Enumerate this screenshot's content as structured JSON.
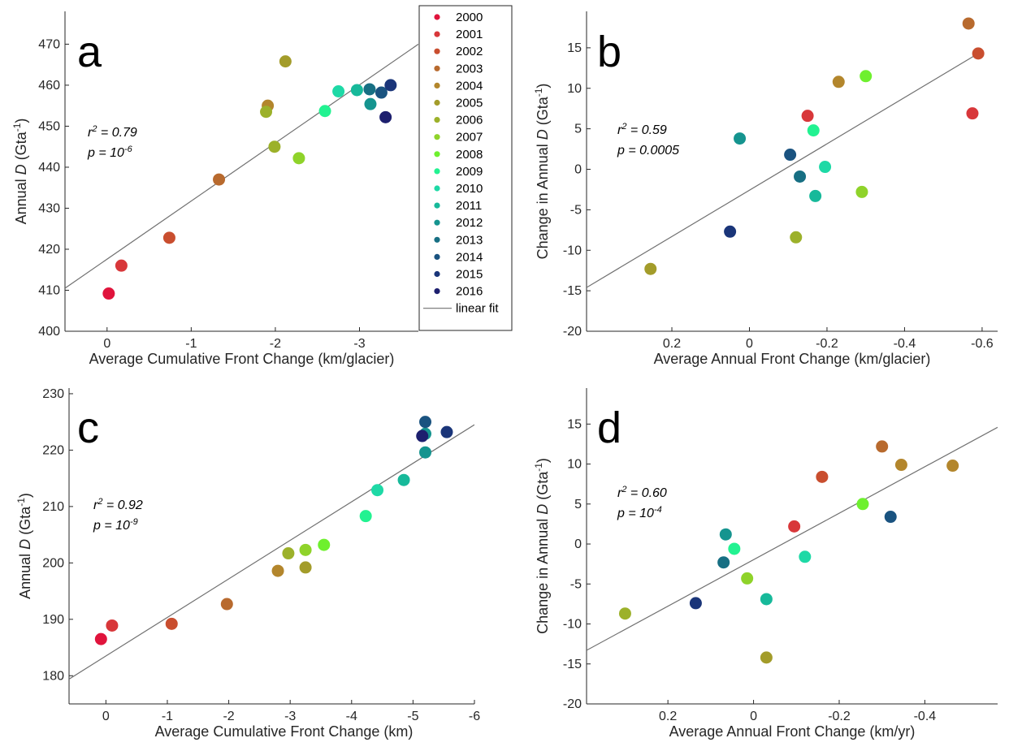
{
  "colors": {
    "2000": "#e0143c",
    "2001": "#d8373a",
    "2002": "#c94e2f",
    "2003": "#b86a2e",
    "2004": "#b3862c",
    "2005": "#a39c2a",
    "2006": "#9cb12a",
    "2007": "#8fd32a",
    "2008": "#6ef02e",
    "2009": "#22f291",
    "2010": "#1ed9a6",
    "2011": "#17b99a",
    "2012": "#15948f",
    "2013": "#176f83",
    "2014": "#1a5380",
    "2015": "#1a3579",
    "2016": "#1d1f6e",
    "fit_line": "#707070",
    "axis": "#262626"
  },
  "legend": {
    "entries": [
      "2000",
      "2001",
      "2002",
      "2003",
      "2004",
      "2005",
      "2006",
      "2007",
      "2008",
      "2009",
      "2010",
      "2011",
      "2012",
      "2013",
      "2014",
      "2015",
      "2016"
    ],
    "fit_label": "linear fit"
  },
  "chart_data": [
    {
      "panel": "a",
      "type": "scatter",
      "xlabel": "Average Cumulative Front Change (km/glacier)",
      "ylabel_parts": [
        "Annual ",
        "D",
        " (Gta",
        "-1",
        ")"
      ],
      "xlim": [
        0.5,
        -3.7
      ],
      "ylim": [
        400,
        478
      ],
      "xticks": [
        0,
        -1,
        -2,
        -3
      ],
      "xtick_labels": [
        "0",
        "-1",
        "-2",
        "-3"
      ],
      "yticks": [
        400,
        410,
        420,
        430,
        440,
        450,
        460,
        470
      ],
      "ytick_labels": [
        "400",
        "410",
        "420",
        "430",
        "440",
        "450",
        "460",
        "470"
      ],
      "stats": {
        "r2_lhs": "r",
        "r2_sup": "2",
        "r2_val": " = 0.79",
        "p_lhs": "p  = 10",
        "p_sup": "-6"
      },
      "fit": {
        "x": [
          0.5,
          -3.7
        ],
        "y": [
          410.5,
          470.0
        ]
      },
      "points": [
        {
          "year": "2000",
          "x": -0.02,
          "y": 409.2
        },
        {
          "year": "2001",
          "x": -0.17,
          "y": 416.0
        },
        {
          "year": "2002",
          "x": -0.74,
          "y": 422.8
        },
        {
          "year": "2003",
          "x": -1.33,
          "y": 437.0
        },
        {
          "year": "2004",
          "x": -1.91,
          "y": 455.0
        },
        {
          "year": "2005",
          "x": -2.12,
          "y": 465.8
        },
        {
          "year": "2006",
          "x": -1.89,
          "y": 453.5
        },
        {
          "year": "2006",
          "x": -1.99,
          "y": 445.0
        },
        {
          "year": "2007",
          "x": -2.28,
          "y": 442.2
        },
        {
          "year": "2009",
          "x": -2.59,
          "y": 453.7
        },
        {
          "year": "2010",
          "x": -2.75,
          "y": 458.5
        },
        {
          "year": "2011",
          "x": -2.97,
          "y": 458.8
        },
        {
          "year": "2012",
          "x": -3.13,
          "y": 455.4
        },
        {
          "year": "2013",
          "x": -3.12,
          "y": 459.0
        },
        {
          "year": "2014",
          "x": -3.26,
          "y": 458.2
        },
        {
          "year": "2015",
          "x": -3.37,
          "y": 460.0
        },
        {
          "year": "2016",
          "x": -3.31,
          "y": 452.2
        }
      ]
    },
    {
      "panel": "b",
      "type": "scatter",
      "xlabel": "Average Annual Front Change (km/glacier)",
      "ylabel_parts": [
        "Change in Annual ",
        "D",
        " (Gta",
        "-1",
        ")"
      ],
      "xlim": [
        0.42,
        -0.64
      ],
      "ylim": [
        -20,
        19.5
      ],
      "xticks": [
        0.2,
        0,
        -0.2,
        -0.4,
        -0.6
      ],
      "xtick_labels": [
        "0.2",
        "0",
        "-0.2",
        "-0.4",
        "-0.6"
      ],
      "yticks": [
        -20,
        -15,
        -10,
        -5,
        0,
        5,
        10,
        15
      ],
      "ytick_labels": [
        "-20",
        "-15",
        "-10",
        "-5",
        "0",
        "5",
        "10",
        "15"
      ],
      "stats": {
        "r2_lhs": "r",
        "r2_sup": "2",
        "r2_val": " = 0.59",
        "p_lhs": "p  = 0.0005",
        "p_sup": ""
      },
      "fit": {
        "x": [
          0.42,
          -0.59
        ],
        "y": [
          -14.6,
          14.3
        ]
      },
      "points": [
        {
          "year": "2001",
          "x": -0.15,
          "y": 6.6
        },
        {
          "year": "2001",
          "x": -0.575,
          "y": 6.9
        },
        {
          "year": "2002",
          "x": -0.59,
          "y": 14.3
        },
        {
          "year": "2003",
          "x": -0.565,
          "y": 18.0
        },
        {
          "year": "2004",
          "x": -0.23,
          "y": 10.8
        },
        {
          "year": "2005",
          "x": 0.255,
          "y": -12.3
        },
        {
          "year": "2006",
          "x": -0.12,
          "y": -8.4
        },
        {
          "year": "2007",
          "x": -0.29,
          "y": -2.8
        },
        {
          "year": "2008",
          "x": -0.3,
          "y": 11.5
        },
        {
          "year": "2009",
          "x": -0.165,
          "y": 4.8
        },
        {
          "year": "2010",
          "x": -0.195,
          "y": 0.3
        },
        {
          "year": "2011",
          "x": -0.17,
          "y": -3.3
        },
        {
          "year": "2012",
          "x": 0.025,
          "y": 3.8
        },
        {
          "year": "2013",
          "x": -0.13,
          "y": -0.9
        },
        {
          "year": "2014",
          "x": -0.105,
          "y": 1.8
        },
        {
          "year": "2015",
          "x": 0.05,
          "y": -7.7
        }
      ]
    },
    {
      "panel": "c",
      "type": "scatter",
      "xlabel": "Average Cumulative Front Change (km)",
      "ylabel_parts": [
        "Annual ",
        "D",
        " (Gta",
        "-1",
        ")"
      ],
      "xlim": [
        0.6,
        -6.0
      ],
      "ylim": [
        175,
        231
      ],
      "xticks": [
        0,
        -1,
        -2,
        -3,
        -4,
        -5,
        -6
      ],
      "xtick_labels": [
        "0",
        "-1",
        "-2",
        "-3",
        "-4",
        "-5",
        "-6"
      ],
      "yticks": [
        180,
        190,
        200,
        210,
        220,
        230
      ],
      "ytick_labels": [
        "180",
        "190",
        "200",
        "210",
        "220",
        "230"
      ],
      "stats": {
        "r2_lhs": "r",
        "r2_sup": "2",
        "r2_val": " = 0.92",
        "p_lhs": "p  = 10",
        "p_sup": "-9"
      },
      "fit": {
        "x": [
          0.6,
          -6.0
        ],
        "y": [
          179.4,
          224.5
        ]
      },
      "points": [
        {
          "year": "2000",
          "x": 0.08,
          "y": 186.5
        },
        {
          "year": "2001",
          "x": -0.1,
          "y": 188.9
        },
        {
          "year": "2002",
          "x": -1.07,
          "y": 189.2
        },
        {
          "year": "2003",
          "x": -1.97,
          "y": 192.7
        },
        {
          "year": "2004",
          "x": -2.8,
          "y": 198.6
        },
        {
          "year": "2005",
          "x": -3.25,
          "y": 199.2
        },
        {
          "year": "2006",
          "x": -2.97,
          "y": 201.7
        },
        {
          "year": "2007",
          "x": -3.25,
          "y": 202.3
        },
        {
          "year": "2008",
          "x": -3.55,
          "y": 203.2
        },
        {
          "year": "2009",
          "x": -4.23,
          "y": 208.3
        },
        {
          "year": "2010",
          "x": -4.42,
          "y": 212.9
        },
        {
          "year": "2011",
          "x": -4.85,
          "y": 214.7
        },
        {
          "year": "2012",
          "x": -5.2,
          "y": 219.6
        },
        {
          "year": "2012",
          "x": -5.2,
          "y": 222.9
        },
        {
          "year": "2014",
          "x": -5.2,
          "y": 225.0
        },
        {
          "year": "2015",
          "x": -5.55,
          "y": 223.2
        },
        {
          "year": "2016",
          "x": -5.15,
          "y": 222.5
        }
      ]
    },
    {
      "panel": "d",
      "type": "scatter",
      "xlabel": "Average Annual Front Change (km/yr)",
      "ylabel_parts": [
        "Change in Annual ",
        "D",
        " (Gta",
        "-1",
        ")"
      ],
      "xlim": [
        0.39,
        -0.57
      ],
      "ylim": [
        -20,
        19.5
      ],
      "xticks": [
        0.2,
        0,
        -0.2,
        -0.4
      ],
      "xtick_labels": [
        "0.2",
        "0",
        "-0.2",
        "-0.4"
      ],
      "yticks": [
        -20,
        -15,
        -10,
        -5,
        0,
        5,
        10,
        15
      ],
      "ytick_labels": [
        "-20",
        "-15",
        "-10",
        "-5",
        "0",
        "5",
        "10",
        "15"
      ],
      "stats": {
        "r2_lhs": "r",
        "r2_sup": "2",
        "r2_val": " = 0.60",
        "p_lhs": "p  = 10",
        "p_sup": "-4"
      },
      "fit": {
        "x": [
          0.39,
          -0.57
        ],
        "y": [
          -13.3,
          14.6
        ]
      },
      "points": [
        {
          "year": "2001",
          "x": -0.095,
          "y": 2.2
        },
        {
          "year": "2002",
          "x": -0.16,
          "y": 8.4
        },
        {
          "year": "2003",
          "x": -0.3,
          "y": 12.2
        },
        {
          "year": "2004",
          "x": -0.345,
          "y": 9.9
        },
        {
          "year": "2004",
          "x": -0.465,
          "y": 9.8
        },
        {
          "year": "2005",
          "x": -0.03,
          "y": -14.2
        },
        {
          "year": "2006",
          "x": 0.3,
          "y": -8.7
        },
        {
          "year": "2007",
          "x": 0.015,
          "y": -4.3
        },
        {
          "year": "2008",
          "x": -0.255,
          "y": 5.0
        },
        {
          "year": "2009",
          "x": 0.045,
          "y": -0.6
        },
        {
          "year": "2010",
          "x": -0.12,
          "y": -1.6
        },
        {
          "year": "2011",
          "x": -0.03,
          "y": -6.9
        },
        {
          "year": "2012",
          "x": 0.065,
          "y": 1.2
        },
        {
          "year": "2013",
          "x": 0.07,
          "y": -2.3
        },
        {
          "year": "2014",
          "x": -0.32,
          "y": 3.4
        },
        {
          "year": "2015",
          "x": 0.135,
          "y": -7.4
        }
      ]
    }
  ]
}
